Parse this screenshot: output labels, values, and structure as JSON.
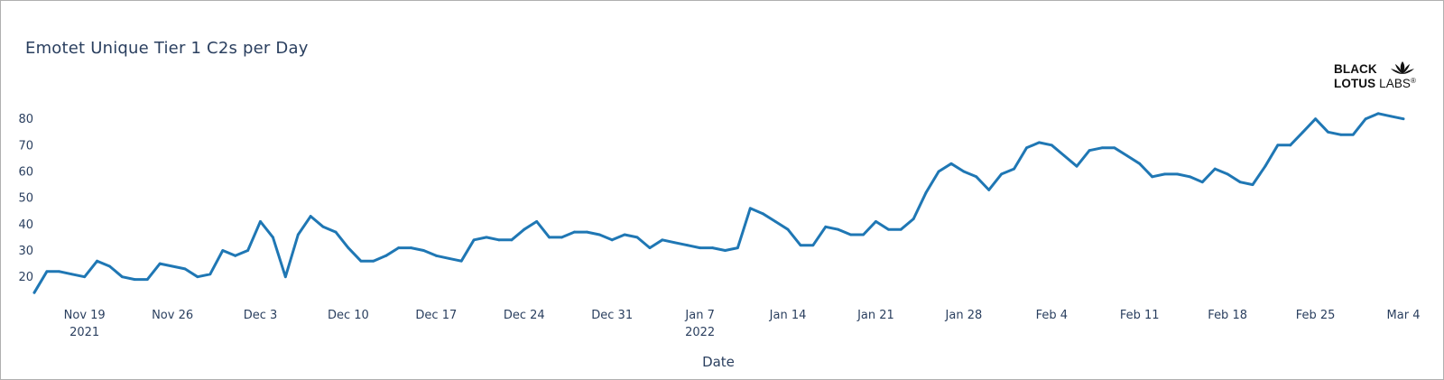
{
  "chart_data": {
    "type": "line",
    "title": "Emotet Unique Tier 1 C2s per Day",
    "xlabel": "Date",
    "ylabel": "",
    "x_start": "2021-11-15",
    "x_end": "2022-03-04",
    "ylim": [
      12,
      84
    ],
    "yticks": [
      20,
      30,
      40,
      50,
      60,
      70,
      80
    ],
    "xticks": [
      {
        "date": "2021-11-19",
        "label": "Nov 19",
        "sub": "2021"
      },
      {
        "date": "2021-11-26",
        "label": "Nov 26",
        "sub": ""
      },
      {
        "date": "2021-12-03",
        "label": "Dec 3",
        "sub": ""
      },
      {
        "date": "2021-12-10",
        "label": "Dec 10",
        "sub": ""
      },
      {
        "date": "2021-12-17",
        "label": "Dec 17",
        "sub": ""
      },
      {
        "date": "2021-12-24",
        "label": "Dec 24",
        "sub": ""
      },
      {
        "date": "2021-12-31",
        "label": "Dec 31",
        "sub": ""
      },
      {
        "date": "2022-01-07",
        "label": "Jan 7",
        "sub": "2022"
      },
      {
        "date": "2022-01-14",
        "label": "Jan 14",
        "sub": ""
      },
      {
        "date": "2022-01-21",
        "label": "Jan 21",
        "sub": ""
      },
      {
        "date": "2022-01-28",
        "label": "Jan 28",
        "sub": ""
      },
      {
        "date": "2022-02-04",
        "label": "Feb 4",
        "sub": ""
      },
      {
        "date": "2022-02-11",
        "label": "Feb 11",
        "sub": ""
      },
      {
        "date": "2022-02-18",
        "label": "Feb 18",
        "sub": ""
      },
      {
        "date": "2022-02-25",
        "label": "Feb 25",
        "sub": ""
      },
      {
        "date": "2022-03-04",
        "label": "Mar 4",
        "sub": ""
      }
    ],
    "grid": false,
    "series": [
      {
        "color": "#1f77b4",
        "x": [
          "2021-11-15",
          "2021-11-16",
          "2021-11-17",
          "2021-11-18",
          "2021-11-19",
          "2021-11-20",
          "2021-11-21",
          "2021-11-22",
          "2021-11-23",
          "2021-11-24",
          "2021-11-25",
          "2021-11-26",
          "2021-11-27",
          "2021-11-28",
          "2021-11-29",
          "2021-11-30",
          "2021-12-01",
          "2021-12-02",
          "2021-12-03",
          "2021-12-04",
          "2021-12-05",
          "2021-12-06",
          "2021-12-07",
          "2021-12-08",
          "2021-12-09",
          "2021-12-10",
          "2021-12-11",
          "2021-12-12",
          "2021-12-13",
          "2021-12-14",
          "2021-12-15",
          "2021-12-16",
          "2021-12-17",
          "2021-12-18",
          "2021-12-19",
          "2021-12-20",
          "2021-12-21",
          "2021-12-22",
          "2021-12-23",
          "2021-12-24",
          "2021-12-25",
          "2021-12-26",
          "2021-12-27",
          "2021-12-28",
          "2021-12-29",
          "2021-12-30",
          "2021-12-31",
          "2022-01-01",
          "2022-01-02",
          "2022-01-03",
          "2022-01-04",
          "2022-01-05",
          "2022-01-06",
          "2022-01-07",
          "2022-01-08",
          "2022-01-09",
          "2022-01-10",
          "2022-01-11",
          "2022-01-12",
          "2022-01-13",
          "2022-01-14",
          "2022-01-15",
          "2022-01-16",
          "2022-01-17",
          "2022-01-18",
          "2022-01-19",
          "2022-01-20",
          "2022-01-21",
          "2022-01-22",
          "2022-01-23",
          "2022-01-24",
          "2022-01-25",
          "2022-01-26",
          "2022-01-27",
          "2022-01-28",
          "2022-01-29",
          "2022-01-30",
          "2022-01-31",
          "2022-02-01",
          "2022-02-02",
          "2022-02-03",
          "2022-02-04",
          "2022-02-05",
          "2022-02-06",
          "2022-02-07",
          "2022-02-08",
          "2022-02-09",
          "2022-02-10",
          "2022-02-11",
          "2022-02-12",
          "2022-02-13",
          "2022-02-14",
          "2022-02-15",
          "2022-02-16",
          "2022-02-17",
          "2022-02-18",
          "2022-02-19",
          "2022-02-20",
          "2022-02-21",
          "2022-02-22",
          "2022-02-23",
          "2022-02-24",
          "2022-02-25",
          "2022-02-26",
          "2022-02-27",
          "2022-02-28",
          "2022-03-01",
          "2022-03-02",
          "2022-03-03",
          "2022-03-04"
        ],
        "values": [
          14,
          22,
          22,
          21,
          20,
          26,
          24,
          20,
          19,
          19,
          25,
          24,
          23,
          20,
          21,
          30,
          28,
          30,
          41,
          35,
          20,
          36,
          43,
          39,
          37,
          31,
          26,
          26,
          28,
          31,
          31,
          30,
          28,
          27,
          26,
          34,
          35,
          34,
          34,
          38,
          41,
          35,
          35,
          37,
          37,
          36,
          34,
          36,
          35,
          31,
          34,
          33,
          32,
          31,
          31,
          30,
          31,
          46,
          44,
          41,
          38,
          32,
          32,
          39,
          38,
          36,
          36,
          41,
          38,
          38,
          42,
          52,
          60,
          63,
          60,
          58,
          53,
          59,
          61,
          69,
          71,
          70,
          66,
          62,
          68,
          69,
          69,
          66,
          63,
          58,
          59,
          59,
          58,
          56,
          61,
          59,
          56,
          55,
          62,
          70,
          70,
          75,
          80,
          75,
          74,
          74,
          80,
          82,
          81,
          80
        ]
      }
    ]
  },
  "logo": {
    "line1": "BLACK",
    "line2_bold": "LOTUS",
    "line2_thin": "LABS",
    "mark": "®",
    "icon": "lotus-flower-icon"
  }
}
